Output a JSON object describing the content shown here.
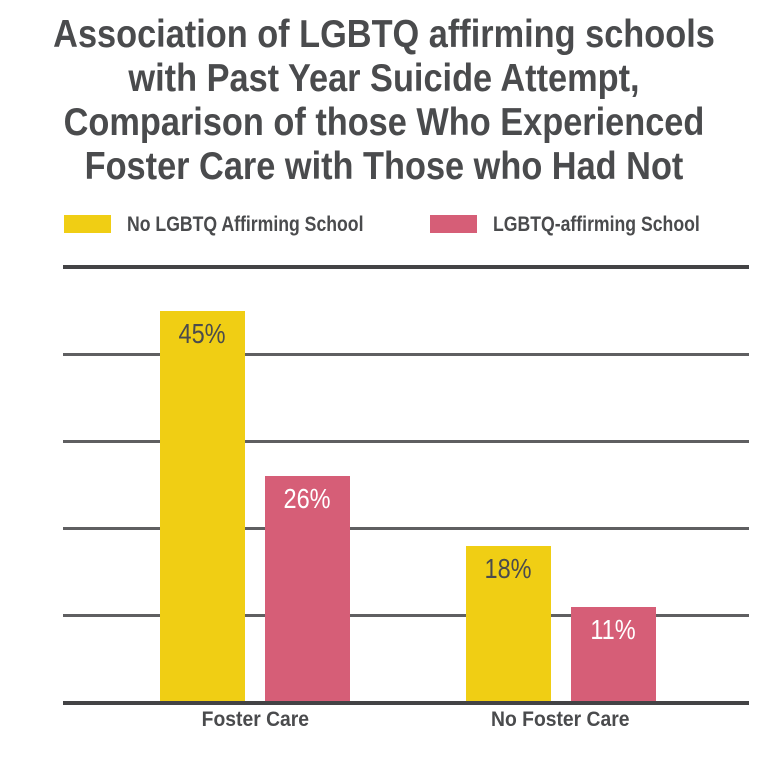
{
  "title": {
    "lines": [
      "Association of LGBTQ affirming schools",
      "with Past Year Suicide Attempt,",
      "Comparison of those Who Experienced",
      "Foster Care with Those who Had Not"
    ],
    "color": "#4A4B4D"
  },
  "legend": {
    "items": [
      {
        "label": "No LGBTQ Affirming School",
        "color": "#F0CE14"
      },
      {
        "label": "LGBTQ-affirming School",
        "color": "#D65E77"
      }
    ],
    "text_color": "#4A4B4D"
  },
  "chart_data": {
    "type": "bar",
    "categories": [
      "Foster Care",
      "No Foster Care"
    ],
    "series": [
      {
        "name": "No LGBTQ Affirming School",
        "color": "#F0CE14",
        "values": [
          45,
          18
        ],
        "labels": [
          "45%",
          "18%"
        ],
        "label_color": "#4A4B4D"
      },
      {
        "name": "LGBTQ-affirming School",
        "color": "#D65E77",
        "values": [
          26,
          11
        ],
        "labels": [
          "26%",
          "11%"
        ],
        "label_color": "#FFFFFF"
      }
    ],
    "ylim": [
      0,
      50
    ],
    "gridline_every": 10,
    "grid": "horizontal",
    "legend_position": "top",
    "value_label_position": "inside-top",
    "axis_color": "#434345",
    "grid_color": "#5F5F61",
    "category_label_color": "#4A4B4D"
  }
}
